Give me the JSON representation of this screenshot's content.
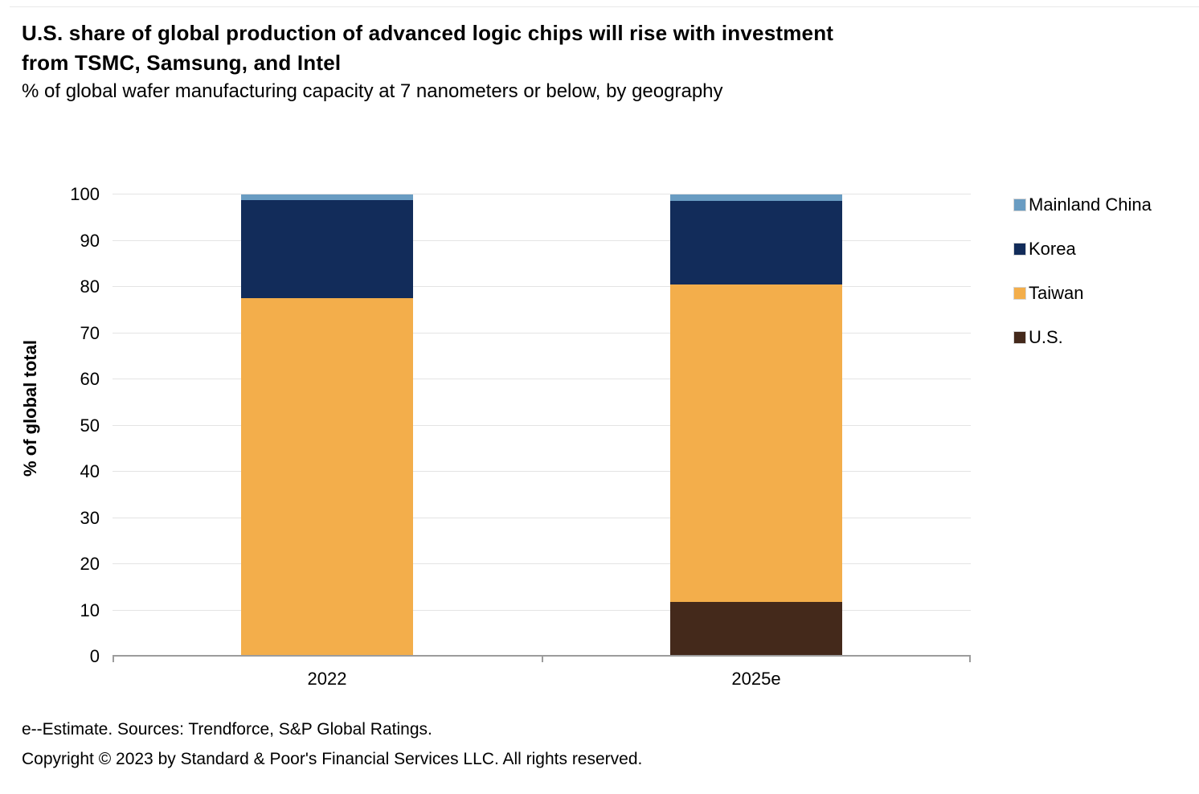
{
  "header": {
    "title_line1": "U.S. share of global production of advanced logic chips will rise with investment",
    "title_line2": "from TSMC, Samsung, and Intel",
    "subtitle": "% of global wafer manufacturing capacity at 7 nanometers or below, by geography"
  },
  "chart_data": {
    "type": "bar",
    "stacked": true,
    "title": "U.S. share of global production of advanced logic chips will rise with investment from TSMC, Samsung, and Intel",
    "subtitle": "% of global wafer manufacturing capacity at 7 nanometers or below, by geography",
    "categories": [
      "2022",
      "2025e"
    ],
    "series": [
      {
        "name": "Mainland China",
        "color": "#699CC2",
        "values": [
          1.2,
          1.4
        ]
      },
      {
        "name": "Korea",
        "color": "#122C5A",
        "values": [
          21.2,
          18.1
        ]
      },
      {
        "name": "Taiwan",
        "color": "#F3AE4B",
        "values": [
          77.6,
          68.7
        ]
      },
      {
        "name": "U.S.",
        "color": "#44291B",
        "values": [
          0,
          11.8
        ]
      }
    ],
    "xlabel": "",
    "ylabel": "% of global total",
    "ylim": [
      0,
      100
    ],
    "yticks": [
      0,
      10,
      20,
      30,
      40,
      50,
      60,
      70,
      80,
      90,
      100
    ],
    "grid": true,
    "legend_position": "right"
  },
  "footer": {
    "source_note": "e--Estimate. Sources: Trendforce, S&P Global Ratings.",
    "copyright": "Copyright © 2023 by Standard & Poor's Financial Services LLC. All rights reserved."
  }
}
